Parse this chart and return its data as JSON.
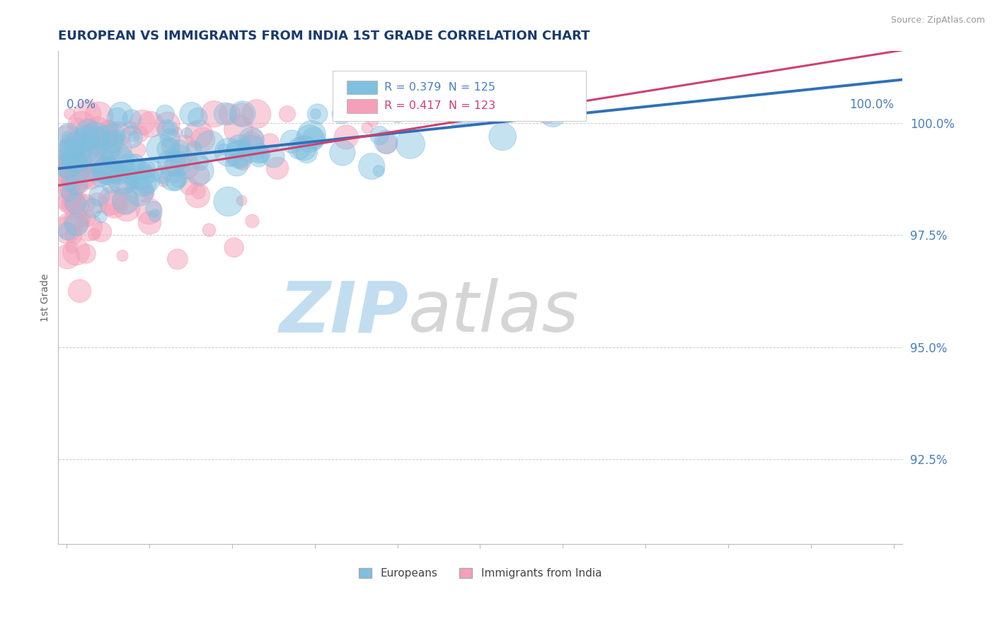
{
  "title": "EUROPEAN VS IMMIGRANTS FROM INDIA 1ST GRADE CORRELATION CHART",
  "source": "Source: ZipAtlas.com",
  "ylabel": "1st Grade",
  "ytick_labels": [
    "100.0%",
    "97.5%",
    "95.0%",
    "92.5%"
  ],
  "ytick_values": [
    1.0,
    0.975,
    0.95,
    0.925
  ],
  "ylim": [
    0.906,
    1.016
  ],
  "xlim": [
    -0.01,
    1.01
  ],
  "legend_blue_label": "R = 0.379  N = 125",
  "legend_pink_label": "R = 0.417  N = 123",
  "blue_color": "#7fbfdf",
  "pink_color": "#f4a0b8",
  "blue_line_color": "#3070b8",
  "pink_line_color": "#d04070",
  "blue_R": 0.379,
  "blue_N": 125,
  "pink_R": 0.417,
  "pink_N": 123,
  "bg_color": "#ffffff",
  "grid_color": "#cccccc",
  "title_color": "#1a3a6e",
  "axis_label_color": "#4a7fc0",
  "watermark_zip_color": "#b8d8ee",
  "watermark_atlas_color": "#c8c8c8"
}
